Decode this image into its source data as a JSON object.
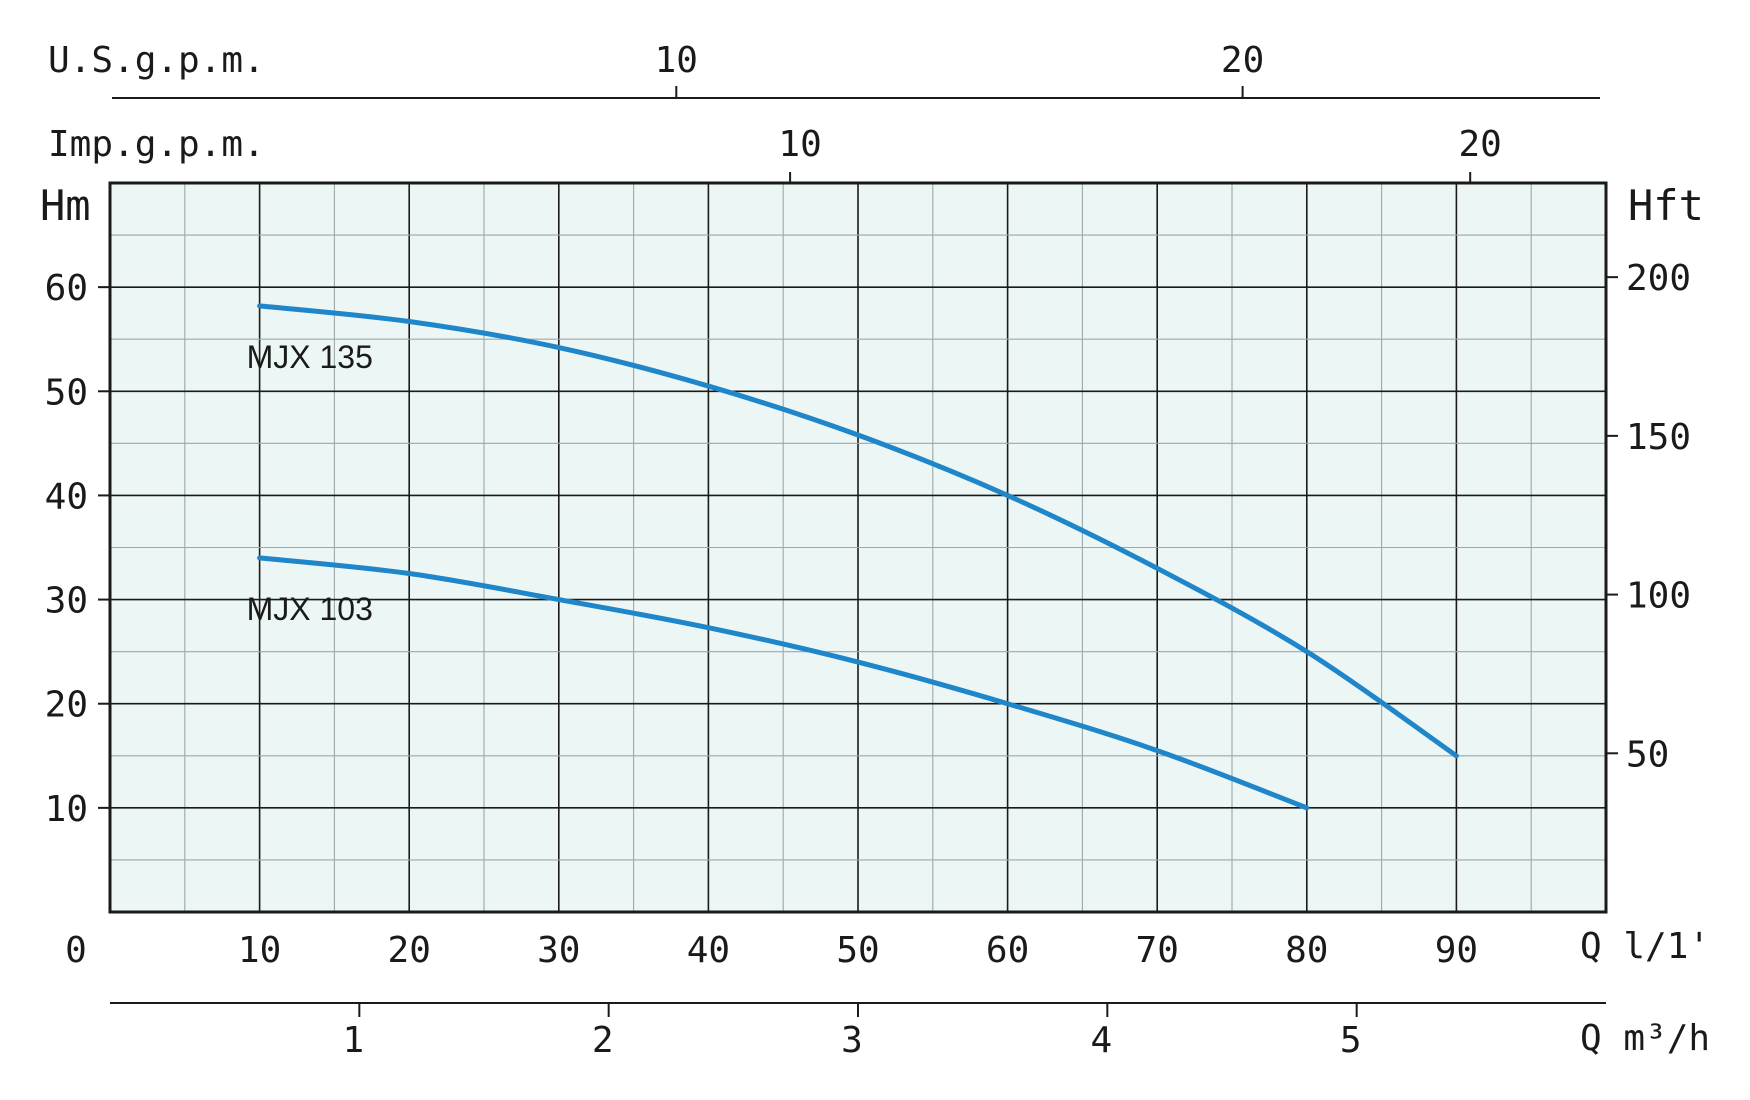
{
  "chart_data": {
    "type": "line",
    "title": "",
    "colors": {
      "curve": "#1f86c9",
      "plot_bg": "#ecf6f5",
      "grid_major": "#1a1a1a",
      "grid_minor": "#9aa8a8"
    },
    "grid": true,
    "x_primary": {
      "label": "Q l/1'",
      "ticks": [
        0,
        10,
        20,
        30,
        40,
        50,
        60,
        70,
        80,
        90
      ],
      "range": [
        0,
        100
      ]
    },
    "x_m3h": {
      "label": "Q m³/h",
      "ticks": [
        1,
        2,
        3,
        4,
        5
      ]
    },
    "x_us_gpm": {
      "label": "U.S.g.p.m.",
      "ticks": [
        10,
        20
      ]
    },
    "x_imp_gpm": {
      "label": "Imp.g.p.m.",
      "ticks": [
        10,
        20
      ]
    },
    "y_left": {
      "label": "Hm",
      "ticks": [
        10,
        20,
        30,
        40,
        50,
        60
      ],
      "range": [
        0,
        70
      ]
    },
    "y_right": {
      "label": "Hft",
      "ticks": [
        50,
        100,
        150,
        200
      ]
    },
    "series": [
      {
        "name": "MJX 135",
        "x": [
          10,
          20,
          30,
          40,
          50,
          60,
          70,
          80,
          90
        ],
        "y": [
          58.2,
          56.7,
          54.2,
          50.5,
          45.8,
          40,
          33,
          25,
          15
        ]
      },
      {
        "name": "MJX 103",
        "x": [
          10,
          20,
          30,
          40,
          50,
          60,
          70,
          80
        ],
        "y": [
          34,
          32.5,
          30,
          27.3,
          24,
          20,
          15.5,
          10
        ]
      }
    ]
  }
}
